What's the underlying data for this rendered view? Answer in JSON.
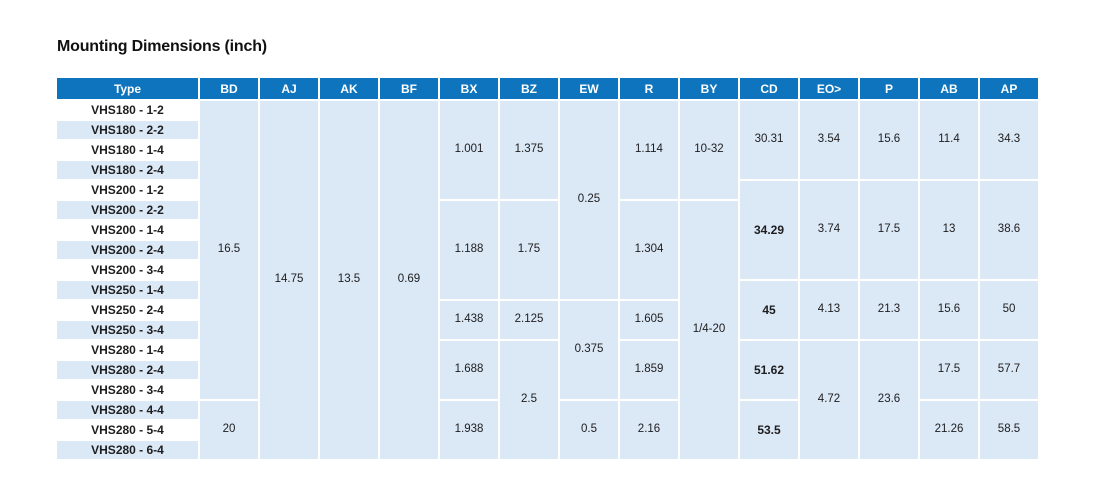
{
  "title": "Mounting Dimensions (inch)",
  "colors": {
    "header_bg": "#0d74bd",
    "header_text": "#ffffff",
    "cell_bg": "#dbe8f5",
    "row_stripe": "#dbe8f5",
    "body_text": "#1d1d1f"
  },
  "table": {
    "header": [
      "Type",
      "BD",
      "AJ",
      "AK",
      "BF",
      "BX",
      "BZ",
      "EW",
      "R",
      "BY",
      "CD",
      "EO>",
      "P",
      "AB",
      "AP"
    ],
    "rows": [
      "VHS180 - 1-2",
      "VHS180 - 2-2",
      "VHS180 - 1-4",
      "VHS180 - 2-4",
      "VHS200 - 1-2",
      "VHS200 - 2-2",
      "VHS200 - 1-4",
      "VHS200 - 2-4",
      "VHS200 - 3-4",
      "VHS250 - 1-4",
      "VHS250 - 2-4",
      "VHS250 - 3-4",
      "VHS280 - 1-4",
      "VHS280 - 2-4",
      "VHS280 - 3-4",
      "VHS280 - 4-4",
      "VHS280 - 5-4",
      "VHS280 - 6-4"
    ],
    "cells": {
      "BD": [
        {
          "row": 1,
          "span": 15,
          "value": "16.5"
        },
        {
          "row": 16,
          "span": 3,
          "value": "20"
        }
      ],
      "AJ": [
        {
          "row": 1,
          "span": 18,
          "value": "14.75"
        }
      ],
      "AK": [
        {
          "row": 1,
          "span": 18,
          "value": "13.5"
        }
      ],
      "BF": [
        {
          "row": 1,
          "span": 18,
          "value": "0.69"
        }
      ],
      "BX": [
        {
          "row": 1,
          "span": 5,
          "value": "1.001"
        },
        {
          "row": 6,
          "span": 5,
          "value": "1.188"
        },
        {
          "row": 11,
          "span": 2,
          "value": "1.438"
        },
        {
          "row": 13,
          "span": 3,
          "value": "1.688"
        },
        {
          "row": 16,
          "span": 3,
          "value": "1.938"
        }
      ],
      "BZ": [
        {
          "row": 1,
          "span": 5,
          "value": "1.375"
        },
        {
          "row": 6,
          "span": 5,
          "value": "1.75"
        },
        {
          "row": 11,
          "span": 2,
          "value": "2.125"
        },
        {
          "row": 13,
          "span": 6,
          "value": "2.5"
        }
      ],
      "EW": [
        {
          "row": 1,
          "span": 10,
          "value": "0.25"
        },
        {
          "row": 11,
          "span": 5,
          "value": "0.375"
        },
        {
          "row": 16,
          "span": 3,
          "value": "0.5"
        }
      ],
      "R": [
        {
          "row": 1,
          "span": 5,
          "value": "1.114"
        },
        {
          "row": 6,
          "span": 5,
          "value": "1.304"
        },
        {
          "row": 11,
          "span": 2,
          "value": "1.605"
        },
        {
          "row": 13,
          "span": 3,
          "value": "1.859"
        },
        {
          "row": 16,
          "span": 3,
          "value": "2.16"
        }
      ],
      "BY": [
        {
          "row": 1,
          "span": 5,
          "value": "10-32"
        },
        {
          "row": 6,
          "span": 13,
          "value": "1/4-20"
        }
      ],
      "CD": [
        {
          "row": 1,
          "span": 4,
          "value": "30.31"
        },
        {
          "row": 5,
          "span": 5,
          "value": "34.29",
          "bold": true
        },
        {
          "row": 10,
          "span": 3,
          "value": "45",
          "bold": true
        },
        {
          "row": 13,
          "span": 3,
          "value": "51.62",
          "bold": true
        },
        {
          "row": 16,
          "span": 3,
          "value": "53.5",
          "bold": true
        }
      ],
      "EO>": [
        {
          "row": 1,
          "span": 4,
          "value": "3.54"
        },
        {
          "row": 5,
          "span": 5,
          "value": "3.74"
        },
        {
          "row": 10,
          "span": 3,
          "value": "4.13"
        },
        {
          "row": 13,
          "span": 6,
          "value": "4.72"
        }
      ],
      "P": [
        {
          "row": 1,
          "span": 4,
          "value": "15.6"
        },
        {
          "row": 5,
          "span": 5,
          "value": "17.5"
        },
        {
          "row": 10,
          "span": 3,
          "value": "21.3"
        },
        {
          "row": 13,
          "span": 6,
          "value": "23.6"
        }
      ],
      "AB": [
        {
          "row": 1,
          "span": 4,
          "value": "11.4"
        },
        {
          "row": 5,
          "span": 5,
          "value": "13"
        },
        {
          "row": 10,
          "span": 3,
          "value": "15.6"
        },
        {
          "row": 13,
          "span": 3,
          "value": "17.5"
        },
        {
          "row": 16,
          "span": 3,
          "value": "21.26"
        }
      ],
      "AP": [
        {
          "row": 1,
          "span": 4,
          "value": "34.3"
        },
        {
          "row": 5,
          "span": 5,
          "value": "38.6"
        },
        {
          "row": 10,
          "span": 3,
          "value": "50"
        },
        {
          "row": 13,
          "span": 3,
          "value": "57.7"
        },
        {
          "row": 16,
          "span": 3,
          "value": "58.5"
        }
      ]
    }
  }
}
